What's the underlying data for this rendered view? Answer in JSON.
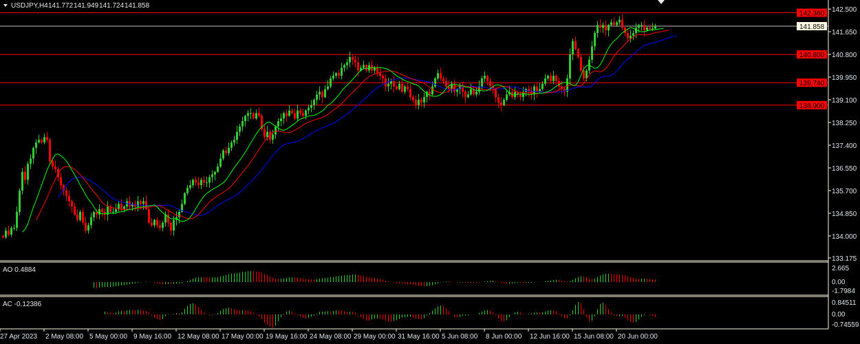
{
  "header": {
    "symbol": "USDJPY,H4",
    "open": "141.772",
    "high": "141.949",
    "low": "141.724",
    "close": "141.858"
  },
  "colors": {
    "background": "#000000",
    "bull": "#32cd32",
    "bear": "#ff0000",
    "lips": "#00ff00",
    "teeth": "#ff0000",
    "jaw": "#0000ff",
    "level_line": "#ff0000",
    "bid_line": "#c0c0c0",
    "axis": "#fffde0"
  },
  "indicators": {
    "ao_label": "AO 0.4884",
    "ac_label": "AC -0.12386",
    "ao_ticks": [
      "2.665",
      "0.00",
      "-1.7984"
    ],
    "ac_ticks": [
      "0.84511",
      "0.00",
      "-0.74559"
    ]
  },
  "chart_data": {
    "type": "candlestick",
    "symbol": "USDJPY",
    "timeframe": "H4",
    "y_ticks": [
      "142.500",
      "141.650",
      "140.800",
      "139.950",
      "139.100",
      "138.250",
      "137.400",
      "136.550",
      "135.700",
      "134.850",
      "134.000",
      "133.175"
    ],
    "ylim": [
      133.175,
      142.84
    ],
    "x_labels": [
      "27 Apr 2023",
      "2 May 08:00",
      "5 May 00:00",
      "9 May 16:00",
      "12 May 08:00",
      "17 May 00:00",
      "19 May 16:00",
      "24 May 08:00",
      "29 May 00:00",
      "31 May 16:00",
      "5 Jun 08:00",
      "8 Jun 00:00",
      "12 Jun 16:00",
      "15 Jun 08:00",
      "20 Jun 00:00"
    ],
    "levels": [
      "142.360",
      "140.800",
      "139.740",
      "138.900"
    ],
    "bid": "141.858",
    "closes": [
      133.95,
      134.2,
      134.05,
      134.3,
      134.3,
      134.9,
      135.7,
      136.4,
      136.1,
      136.7,
      136.9,
      137.3,
      137.5,
      137.6,
      137.5,
      137.7,
      137.6,
      136.8,
      136.6,
      136.5,
      136.2,
      135.9,
      135.7,
      135.5,
      135.3,
      135.1,
      134.8,
      134.6,
      134.9,
      134.5,
      134.2,
      134.4,
      134.7,
      134.9,
      134.8,
      135.0,
      134.9,
      134.8,
      135.1,
      134.9,
      134.9,
      135.0,
      135.2,
      135.0,
      135.1,
      135.3,
      135.1,
      135.2,
      135.1,
      135.3,
      135.2,
      135.3,
      135.0,
      134.5,
      134.4,
      134.6,
      134.4,
      134.3,
      134.5,
      134.8,
      134.5,
      134.2,
      134.6,
      134.7,
      134.9,
      135.2,
      135.6,
      135.8,
      135.9,
      136.1,
      136.0,
      135.9,
      136.1,
      136.0,
      136.0,
      136.2,
      136.3,
      136.4,
      136.6,
      136.9,
      137.2,
      137.1,
      137.3,
      137.5,
      137.6,
      137.9,
      138.1,
      138.3,
      138.5,
      138.6,
      138.6,
      138.4,
      138.6,
      138.5,
      138.0,
      137.7,
      137.9,
      137.6,
      137.8,
      138.1,
      138.3,
      138.4,
      138.6,
      138.5,
      138.7,
      138.6,
      138.4,
      138.7,
      138.6,
      138.5,
      138.7,
      138.8,
      138.9,
      139.1,
      139.3,
      139.4,
      139.2,
      139.5,
      139.6,
      139.9,
      140.0,
      140.1,
      140.0,
      140.3,
      140.4,
      140.5,
      140.7,
      140.6,
      140.5,
      140.2,
      140.3,
      140.4,
      140.2,
      140.4,
      140.2,
      140.3,
      140.1,
      140.0,
      139.9,
      139.6,
      139.7,
      139.8,
      139.6,
      139.5,
      139.7,
      139.4,
      139.6,
      139.5,
      139.2,
      139.1,
      138.9,
      139.1,
      139.0,
      139.2,
      139.4,
      139.3,
      139.6,
      139.9,
      140.1,
      139.9,
      139.8,
      139.6,
      139.5,
      139.7,
      139.4,
      139.5,
      139.6,
      139.4,
      139.2,
      139.3,
      139.5,
      139.3,
      139.4,
      139.6,
      139.9,
      140.0,
      139.8,
      139.6,
      139.5,
      139.2,
      139.0,
      138.9,
      139.1,
      139.3,
      139.4,
      139.2,
      139.4,
      139.3,
      139.2,
      139.4,
      139.5,
      139.4,
      139.3,
      139.6,
      139.4,
      139.5,
      139.7,
      139.9,
      140.0,
      139.8,
      140.0,
      139.8,
      139.6,
      139.5,
      139.4,
      139.9,
      140.8,
      141.3,
      141.0,
      140.7,
      140.2,
      139.9,
      140.2,
      140.6,
      141.1,
      141.6,
      141.9,
      141.8,
      141.9,
      141.7,
      141.9,
      142.0,
      141.9,
      142.0,
      142.1,
      141.8,
      141.6,
      141.4,
      141.5,
      141.6,
      141.8,
      141.9,
      141.9,
      141.7,
      141.8,
      141.75,
      141.77,
      141.858
    ]
  }
}
